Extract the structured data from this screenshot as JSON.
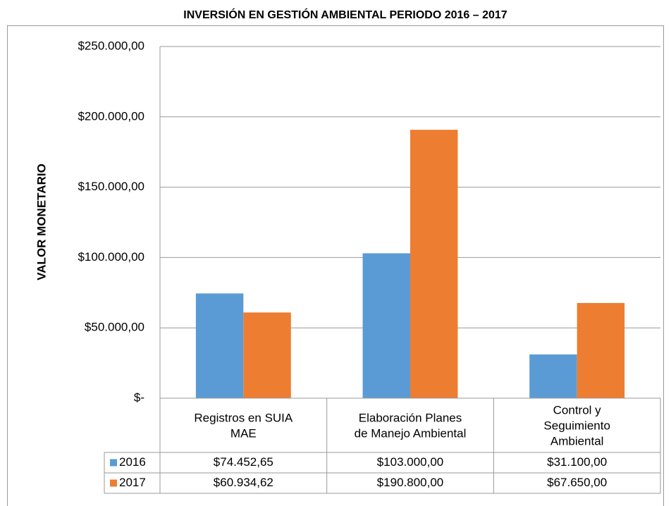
{
  "chart_data": {
    "type": "bar",
    "title": "INVERSIÓN EN GESTIÓN AMBIENTAL PERIODO 2016 – 2017",
    "y_label": "VALOR MONETARIO",
    "categories": [
      "Registros en SUIA MAE",
      "Elaboración Planes de Manejo Ambiental",
      "Control y Seguimiento Ambiental"
    ],
    "series": [
      {
        "name": "2016",
        "color": "#5b9bd5",
        "values": [
          74452.65,
          103000,
          31100
        ],
        "value_labels": [
          "$74.452,65",
          "$103.000,00",
          "$31.100,00"
        ]
      },
      {
        "name": "2017",
        "color": "#ed7d31",
        "values": [
          60934.62,
          190800,
          67650
        ],
        "value_labels": [
          "$60.934,62",
          "$190.800,00",
          "$67.650,00"
        ]
      }
    ],
    "ylim": [
      0,
      250000
    ],
    "yticks": [
      {
        "value": 0,
        "label": "$-"
      },
      {
        "value": 50000,
        "label": "$50.000,00"
      },
      {
        "value": 100000,
        "label": "$100.000,00"
      },
      {
        "value": 150000,
        "label": "$150.000,00"
      },
      {
        "value": 200000,
        "label": "$200.000,00"
      },
      {
        "value": 250000,
        "label": "$250.000,00"
      }
    ],
    "grid": true
  }
}
